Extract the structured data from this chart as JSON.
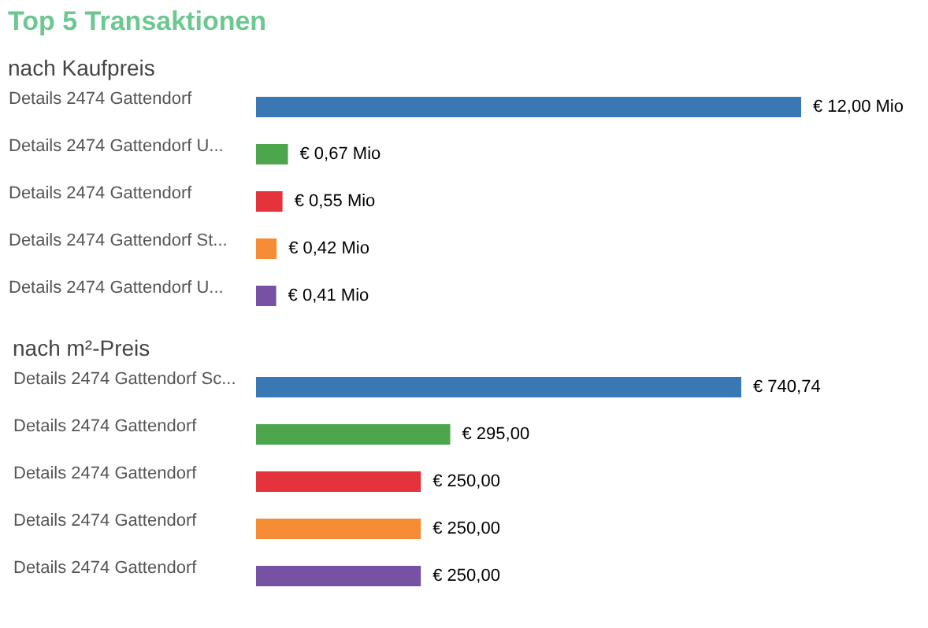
{
  "chart_data": [
    {
      "type": "bar",
      "orientation": "horizontal",
      "title": "Top 5 Transaktionen",
      "subtitle": "nach Kaufpreis",
      "categories": [
        "Details 2474 Gattendorf",
        "Details 2474 Gattendorf U...",
        "Details 2474 Gattendorf",
        "Details 2474 Gattendorf St...",
        "Details 2474 Gattendorf U..."
      ],
      "values": [
        12.0,
        0.67,
        0.55,
        0.42,
        0.41
      ],
      "value_labels": [
        "€ 12,00 Mio",
        "€ 0,67 Mio",
        "€ 0,55 Mio",
        "€ 0,42 Mio",
        "€ 0,41 Mio"
      ],
      "colors": [
        "#3a78b5",
        "#4ca64c",
        "#e5333b",
        "#f68d36",
        "#7752a4"
      ],
      "tick_labels": "y"
    },
    {
      "type": "bar",
      "orientation": "horizontal",
      "subtitle": "nach m²-Preis",
      "categories": [
        "Details 2474 Gattendorf Sc...",
        "Details 2474 Gattendorf",
        "Details 2474 Gattendorf",
        "Details 2474 Gattendorf",
        "Details 2474 Gattendorf"
      ],
      "values": [
        740.74,
        295.0,
        250.0,
        250.0,
        250.0
      ],
      "value_labels": [
        "€ 740,74",
        "€ 295,00",
        "€ 250,00",
        "€ 250,00",
        "€ 250,00"
      ],
      "colors": [
        "#3a78b5",
        "#4ca64c",
        "#e5333b",
        "#f68d36",
        "#7752a4"
      ],
      "tick_labels": "y"
    }
  ]
}
